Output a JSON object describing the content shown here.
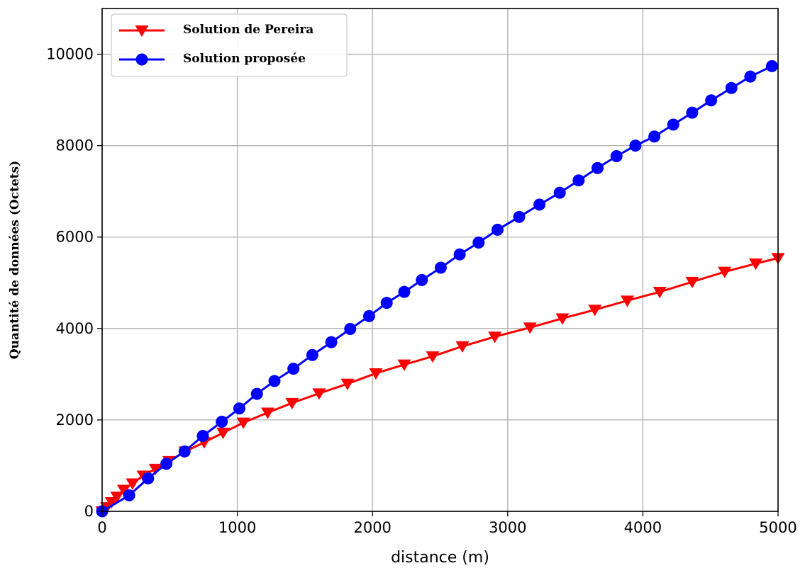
{
  "chart_data": {
    "type": "line",
    "xlabel": "distance (m)",
    "ylabel": "Quantité de données (Octets)",
    "xlim": [
      0,
      5000
    ],
    "ylim": [
      0,
      11000
    ],
    "xticks": [
      0,
      1000,
      2000,
      3000,
      4000,
      5000
    ],
    "yticks": [
      0,
      2000,
      4000,
      6000,
      8000,
      10000
    ],
    "grid": true,
    "legend_position": "top-left",
    "series": [
      {
        "name": "Solution de Pereira",
        "color": "#ff0000",
        "marker": "triangle-down",
        "x": [
          0,
          35,
          70,
          110,
          160,
          225,
          305,
          395,
          495,
          615,
          755,
          895,
          1045,
          1225,
          1405,
          1605,
          1815,
          2025,
          2235,
          2445,
          2665,
          2905,
          3165,
          3405,
          3645,
          3885,
          4125,
          4365,
          4605,
          4835,
          5000
        ],
        "y": [
          0,
          90,
          200,
          320,
          470,
          610,
          780,
          930,
          1100,
          1310,
          1510,
          1720,
          1940,
          2160,
          2370,
          2580,
          2790,
          3020,
          3210,
          3390,
          3610,
          3820,
          4020,
          4220,
          4410,
          4610,
          4800,
          5020,
          5240,
          5420,
          5540
        ]
      },
      {
        "name": "Solution proposée",
        "color": "#0000ff",
        "marker": "circle",
        "x": [
          0,
          200,
          340,
          475,
          610,
          745,
          885,
          1015,
          1145,
          1275,
          1415,
          1555,
          1695,
          1835,
          1975,
          2105,
          2235,
          2365,
          2505,
          2645,
          2785,
          2925,
          3085,
          3235,
          3385,
          3525,
          3665,
          3805,
          3945,
          4085,
          4225,
          4365,
          4505,
          4655,
          4795,
          4955
        ],
        "y": [
          0,
          350,
          720,
          1040,
          1310,
          1650,
          1960,
          2250,
          2570,
          2850,
          3120,
          3420,
          3700,
          3990,
          4270,
          4560,
          4800,
          5060,
          5330,
          5620,
          5880,
          6160,
          6440,
          6710,
          6970,
          7240,
          7510,
          7770,
          8000,
          8200,
          8460,
          8720,
          8990,
          9260,
          9510,
          9740
        ]
      }
    ]
  }
}
